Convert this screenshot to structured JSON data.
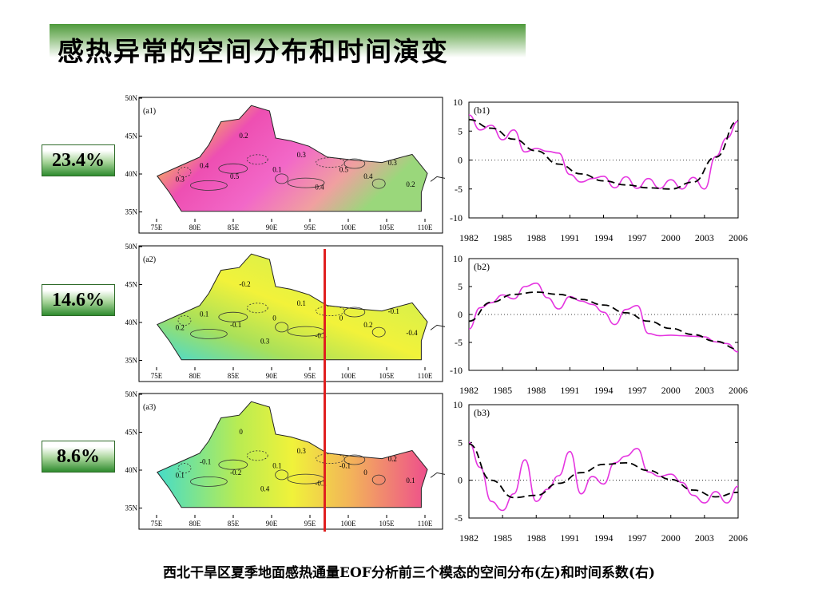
{
  "title": "感热异常的空间分布和时间演变",
  "caption": "西北干旱区夏季地面感热通量EOF分析前三个模态的空间分布(左)和时间系数(右)",
  "percentages": [
    "23.4%",
    "14.6%",
    "8.6%"
  ],
  "colors": {
    "title_green": "#4e9a3c",
    "curve_magenta": "#e535e0",
    "divider_red": "#e02020"
  },
  "maps": [
    {
      "label": "(a1)",
      "lat_ticks": [
        "50N",
        "45N",
        "40N",
        "35N"
      ],
      "lon_ticks": [
        "75E",
        "80E",
        "85E",
        "90E",
        "95E",
        "100E",
        "105E",
        "110E"
      ],
      "colormap": "pink-yellow-green",
      "contour_labels": [
        "0.3",
        "0.4",
        "0.5",
        "0.2",
        "0.1",
        "0.3",
        "0.4",
        "0.5",
        "0.4",
        "0.3",
        "0.2"
      ]
    },
    {
      "label": "(a2)",
      "lat_ticks": [
        "50N",
        "45N",
        "40N",
        "35N"
      ],
      "lon_ticks": [
        "75E",
        "80E",
        "85E",
        "90E",
        "95E",
        "100E",
        "105E",
        "110E"
      ],
      "colormap": "yellow-green-cyan",
      "contour_labels": [
        "0.2",
        "0.1",
        "-0.1",
        "-0.2",
        "0",
        "0.1",
        "-0.3",
        "0",
        "0.2",
        "-0.1",
        "-0.4",
        "0.3"
      ]
    },
    {
      "label": "(a3)",
      "lat_ticks": [
        "50N",
        "45N",
        "40N",
        "35N"
      ],
      "lon_ticks": [
        "75E",
        "80E",
        "85E",
        "90E",
        "95E",
        "100E",
        "105E",
        "110E"
      ],
      "colormap": "orange-yellow-green",
      "contour_labels": [
        "0.1",
        "-0.1",
        "-0.2",
        "0",
        "0.1",
        "0.3",
        "-0.2",
        "-0.1",
        "0",
        "0.2",
        "0.1",
        "0.4"
      ]
    }
  ],
  "chart_data": [
    {
      "type": "line",
      "label": "(b1)",
      "x_ticks": [
        "1982",
        "1985",
        "1988",
        "1991",
        "1994",
        "1997",
        "2000",
        "2003",
        "2006"
      ],
      "y_ticks": [
        "10",
        "5",
        "0",
        "-5",
        "-10"
      ],
      "xlim": [
        1982,
        2006
      ],
      "ylim": [
        -10,
        10
      ],
      "series": [
        {
          "style": "solid-magenta",
          "x": [
            1982,
            1983,
            1984,
            1985,
            1986,
            1987,
            1988,
            1989,
            1990,
            1991,
            1992,
            1993,
            1994,
            1995,
            1996,
            1997,
            1998,
            1999,
            2000,
            2001,
            2002,
            2003,
            2004,
            2005,
            2006
          ],
          "y": [
            7.8,
            5.2,
            6.0,
            3.5,
            5.2,
            1.4,
            2.0,
            1.5,
            1.2,
            -2.5,
            -3.8,
            -3.2,
            -2.8,
            -4.8,
            -2.9,
            -4.9,
            -3.2,
            -4.9,
            -3.4,
            -5.0,
            -3.0,
            -5.0,
            0.6,
            3.8,
            6.7
          ]
        },
        {
          "style": "dashed-black",
          "x": [
            1982,
            1984,
            1986,
            1988,
            1990,
            1992,
            1994,
            1996,
            1998,
            2000,
            2002,
            2004,
            2006
          ],
          "y": [
            7.0,
            5.5,
            3.6,
            1.6,
            -0.7,
            -2.4,
            -3.6,
            -4.3,
            -4.8,
            -5.0,
            -3.8,
            0.5,
            6.8
          ]
        }
      ]
    },
    {
      "type": "line",
      "label": "(b2)",
      "x_ticks": [
        "1982",
        "1985",
        "1988",
        "1991",
        "1994",
        "1997",
        "2000",
        "2003",
        "2006"
      ],
      "y_ticks": [
        "10",
        "5",
        "0",
        "-5",
        "-10"
      ],
      "xlim": [
        1982,
        2006
      ],
      "ylim": [
        -10,
        10
      ],
      "series": [
        {
          "style": "solid-magenta",
          "x": [
            1982,
            1983,
            1984,
            1985,
            1986,
            1987,
            1988,
            1989,
            1990,
            1991,
            1992,
            1993,
            1994,
            1995,
            1996,
            1997,
            1998,
            1999,
            2000,
            2001,
            2002,
            2003,
            2004,
            2005,
            2006
          ],
          "y": [
            -2.6,
            1.2,
            2.1,
            3.5,
            2.8,
            5.0,
            5.6,
            3.0,
            1.0,
            3.2,
            2.4,
            1.8,
            0.4,
            -1.8,
            0.9,
            1.6,
            -3.4,
            -3.8,
            -3.7,
            -3.8,
            -3.9,
            -4.0,
            -4.9,
            -5.2,
            -6.7
          ]
        },
        {
          "style": "dashed-black",
          "x": [
            1982,
            1984,
            1986,
            1988,
            1990,
            1992,
            1994,
            1996,
            1998,
            2000,
            2002,
            2004,
            2006
          ],
          "y": [
            -1.2,
            2.2,
            3.6,
            4.0,
            3.6,
            2.7,
            1.7,
            0.3,
            -1.2,
            -2.5,
            -3.6,
            -4.8,
            -6.2
          ]
        }
      ]
    },
    {
      "type": "line",
      "label": "(b3)",
      "x_ticks": [
        "1982",
        "1985",
        "1988",
        "1991",
        "1994",
        "1997",
        "2000",
        "2003",
        "2006"
      ],
      "y_ticks": [
        "10",
        "5",
        "0",
        "-5"
      ],
      "xlim": [
        1982,
        2006
      ],
      "ylim": [
        -5,
        10
      ],
      "series": [
        {
          "style": "solid-magenta",
          "x": [
            1982,
            1983,
            1984,
            1985,
            1986,
            1987,
            1988,
            1989,
            1990,
            1991,
            1992,
            1993,
            1994,
            1995,
            1996,
            1997,
            1998,
            1999,
            2000,
            2001,
            2002,
            2003,
            2004,
            2005,
            2006
          ],
          "y": [
            5.0,
            1.7,
            -2.8,
            -4.0,
            -1.8,
            2.7,
            -2.8,
            -1.2,
            0.6,
            3.8,
            -1.8,
            0.5,
            -0.5,
            2.3,
            3.2,
            4.2,
            1.1,
            0.5,
            0.8,
            -0.3,
            -2.0,
            -3.0,
            -1.5,
            -3.0,
            -0.8
          ]
        },
        {
          "style": "dashed-black",
          "x": [
            1982,
            1984,
            1986,
            1988,
            1990,
            1992,
            1994,
            1996,
            1998,
            2000,
            2002,
            2004,
            2006
          ],
          "y": [
            4.8,
            0.0,
            -2.3,
            -2.0,
            -0.4,
            1.0,
            2.1,
            2.3,
            1.3,
            0.1,
            -1.3,
            -2.2,
            -1.6
          ]
        }
      ]
    }
  ]
}
